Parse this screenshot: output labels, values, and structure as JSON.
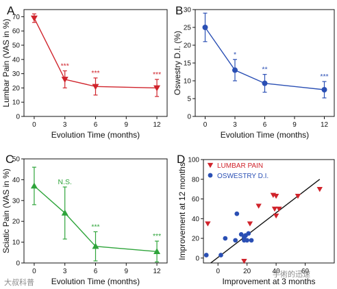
{
  "watermark_left": "大叔科普",
  "watermark_right": "手術的迅速",
  "chart_data": [
    {
      "panel": "A",
      "type": "line",
      "color": "#d0232b",
      "marker": "triangle-down",
      "xlabel": "Evolution Time (months)",
      "ylabel": "Lumbar Pain (VAS in %)",
      "xlim": [
        -1,
        13
      ],
      "ylim": [
        0,
        75
      ],
      "xticks": [
        0,
        3,
        6,
        9,
        12
      ],
      "yticks": [
        0,
        10,
        20,
        30,
        40,
        50,
        60,
        70
      ],
      "series": [
        {
          "points": [
            {
              "x": 0,
              "y": 69,
              "err": 3,
              "label": ""
            },
            {
              "x": 3,
              "y": 26,
              "err": 6,
              "label": "***"
            },
            {
              "x": 6,
              "y": 21,
              "err": 6,
              "label": "***"
            },
            {
              "x": 12,
              "y": 20,
              "err": 6,
              "label": "***"
            }
          ]
        }
      ]
    },
    {
      "panel": "B",
      "type": "line",
      "color": "#2a4fb4",
      "marker": "circle",
      "xlabel": "Evolution Time (months)",
      "ylabel": "Oswestry D.I. (%)",
      "xlim": [
        -1,
        13
      ],
      "ylim": [
        0,
        30
      ],
      "xticks": [
        0,
        3,
        6,
        9,
        12
      ],
      "yticks": [
        0,
        5,
        10,
        15,
        20,
        25,
        30
      ],
      "series": [
        {
          "points": [
            {
              "x": 0,
              "y": 25,
              "err": 4,
              "label": ""
            },
            {
              "x": 3,
              "y": 13,
              "err": 3,
              "label": "*"
            },
            {
              "x": 6,
              "y": 9.3,
              "err": 2.5,
              "label": "**"
            },
            {
              "x": 12,
              "y": 7.5,
              "err": 2.3,
              "label": "***"
            }
          ]
        }
      ]
    },
    {
      "panel": "C",
      "type": "line",
      "color": "#2ea43a",
      "marker": "triangle-up",
      "xlabel": "Evolution Time (months)",
      "ylabel": "Sciatic Pain (VAS in %)",
      "xlim": [
        -1,
        13
      ],
      "ylim": [
        0,
        50
      ],
      "xticks": [
        0,
        3,
        6,
        9,
        12
      ],
      "yticks": [
        0,
        10,
        20,
        30,
        40,
        50
      ],
      "series": [
        {
          "points": [
            {
              "x": 0,
              "y": 37,
              "err": 9,
              "label": ""
            },
            {
              "x": 3,
              "y": 24,
              "err": 12.5,
              "label": "N.S."
            },
            {
              "x": 6,
              "y": 8,
              "err": 7,
              "label": "***"
            },
            {
              "x": 12,
              "y": 5.5,
              "err": 5,
              "label": "***"
            }
          ]
        }
      ]
    },
    {
      "panel": "D",
      "type": "scatter",
      "xlabel": "Improvement at 3 months",
      "ylabel": "Improvement at 12 months",
      "xlim": [
        -10,
        80
      ],
      "ylim": [
        -5,
        100
      ],
      "xticks": [
        0,
        20,
        40,
        60
      ],
      "yticks": [
        0,
        20,
        40,
        60,
        80,
        100
      ],
      "legend_position": "top-left",
      "regression": {
        "x": [
          -5,
          70
        ],
        "y": [
          -5,
          80
        ]
      },
      "series": [
        {
          "name": "LUMBAR PAIN",
          "color": "#d0232b",
          "marker": "triangle-down",
          "points": [
            [
              -7,
              35
            ],
            [
              18,
              -3
            ],
            [
              28,
              53
            ],
            [
              38,
              64
            ],
            [
              40,
              63
            ],
            [
              39,
              50
            ],
            [
              42,
              50
            ],
            [
              40,
              43
            ],
            [
              55,
              63
            ],
            [
              70,
              70
            ],
            [
              22,
              35
            ]
          ]
        },
        {
          "name": "OSWESTRY D.I.",
          "color": "#2a4fb4",
          "marker": "circle",
          "points": [
            [
              -8,
              3
            ],
            [
              2,
              3
            ],
            [
              5,
              20
            ],
            [
              13,
              45
            ],
            [
              16,
              24
            ],
            [
              18,
              21
            ],
            [
              18,
              18
            ],
            [
              19,
              23
            ],
            [
              20,
              18
            ],
            [
              21,
              25
            ],
            [
              23,
              18
            ],
            [
              12,
              18
            ]
          ]
        }
      ]
    }
  ]
}
